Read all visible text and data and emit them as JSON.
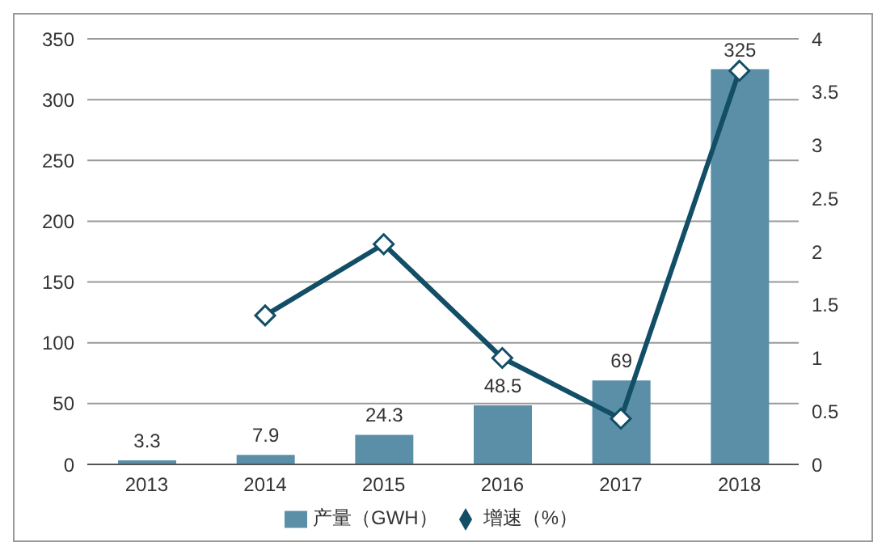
{
  "chart_data": {
    "type": "bar",
    "categories": [
      "2013",
      "2014",
      "2015",
      "2016",
      "2017",
      "2018"
    ],
    "series": [
      {
        "name": "产量（GWH）",
        "color": "#5b8fa8",
        "values": [
          3.3,
          7.9,
          24.3,
          48.5,
          69,
          325
        ],
        "value_labels": [
          "3.3",
          "7.9",
          "24.3",
          "48.5",
          "69",
          "325"
        ]
      },
      {
        "name": "增速（%）",
        "type": "line",
        "axis": "y2",
        "color": "#124e66",
        "marker": "diamond",
        "values": [
          null,
          1.4,
          2.07,
          1.0,
          0.43,
          3.7
        ]
      }
    ],
    "ylim": [
      0,
      350
    ],
    "yticks": [
      0,
      50,
      100,
      150,
      200,
      250,
      300,
      350
    ],
    "y2lim": [
      0,
      4
    ],
    "y2ticks": [
      0,
      0.5,
      1,
      1.5,
      2,
      2.5,
      3,
      3.5,
      4
    ],
    "grid": "y",
    "legend": "bottom"
  }
}
